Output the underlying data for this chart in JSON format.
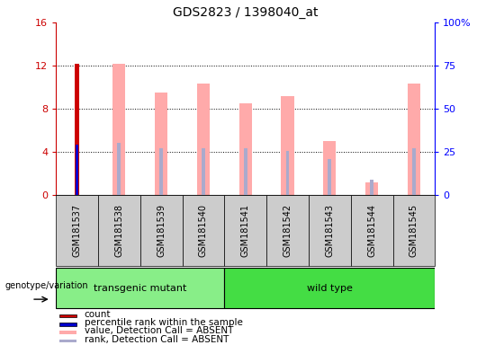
{
  "title": "GDS2823 / 1398040_at",
  "samples": [
    "GSM181537",
    "GSM181538",
    "GSM181539",
    "GSM181540",
    "GSM181541",
    "GSM181542",
    "GSM181543",
    "GSM181544",
    "GSM181545"
  ],
  "count_values": [
    12.2,
    0,
    0,
    0,
    0,
    0,
    0,
    0,
    0
  ],
  "percentile_rank_pct": [
    29.0,
    0,
    0,
    0,
    0,
    0,
    0,
    0,
    0
  ],
  "absent_value": [
    0,
    12.2,
    9.5,
    10.3,
    8.5,
    9.2,
    5.0,
    1.2,
    10.3
  ],
  "absent_rank_pct": [
    0,
    30.0,
    27.0,
    27.0,
    27.0,
    25.5,
    21.0,
    9.0,
    27.0
  ],
  "transgenic_group": [
    0,
    1,
    2,
    3
  ],
  "wildtype_group": [
    4,
    5,
    6,
    7,
    8
  ],
  "ylim_left": [
    0,
    16
  ],
  "ylim_right": [
    0,
    100
  ],
  "yticks_left": [
    0,
    4,
    8,
    12,
    16
  ],
  "ytick_labels_right": [
    "0",
    "25",
    "50",
    "75",
    "100%"
  ],
  "yticks_right": [
    0,
    25,
    50,
    75,
    100
  ],
  "color_count": "#cc0000",
  "color_percentile": "#0000cc",
  "color_absent_value": "#ffaaaa",
  "color_absent_rank": "#aaaacc",
  "color_transgenic": "#88ee88",
  "color_wildtype": "#44dd44",
  "color_sample_bg": "#cccccc",
  "absent_value_bar_width": 0.3,
  "count_bar_width": 0.12,
  "rank_bar_width": 0.08,
  "legend_items": [
    "count",
    "percentile rank within the sample",
    "value, Detection Call = ABSENT",
    "rank, Detection Call = ABSENT"
  ],
  "legend_colors": [
    "#cc0000",
    "#0000cc",
    "#ffaaaa",
    "#aaaacc"
  ]
}
